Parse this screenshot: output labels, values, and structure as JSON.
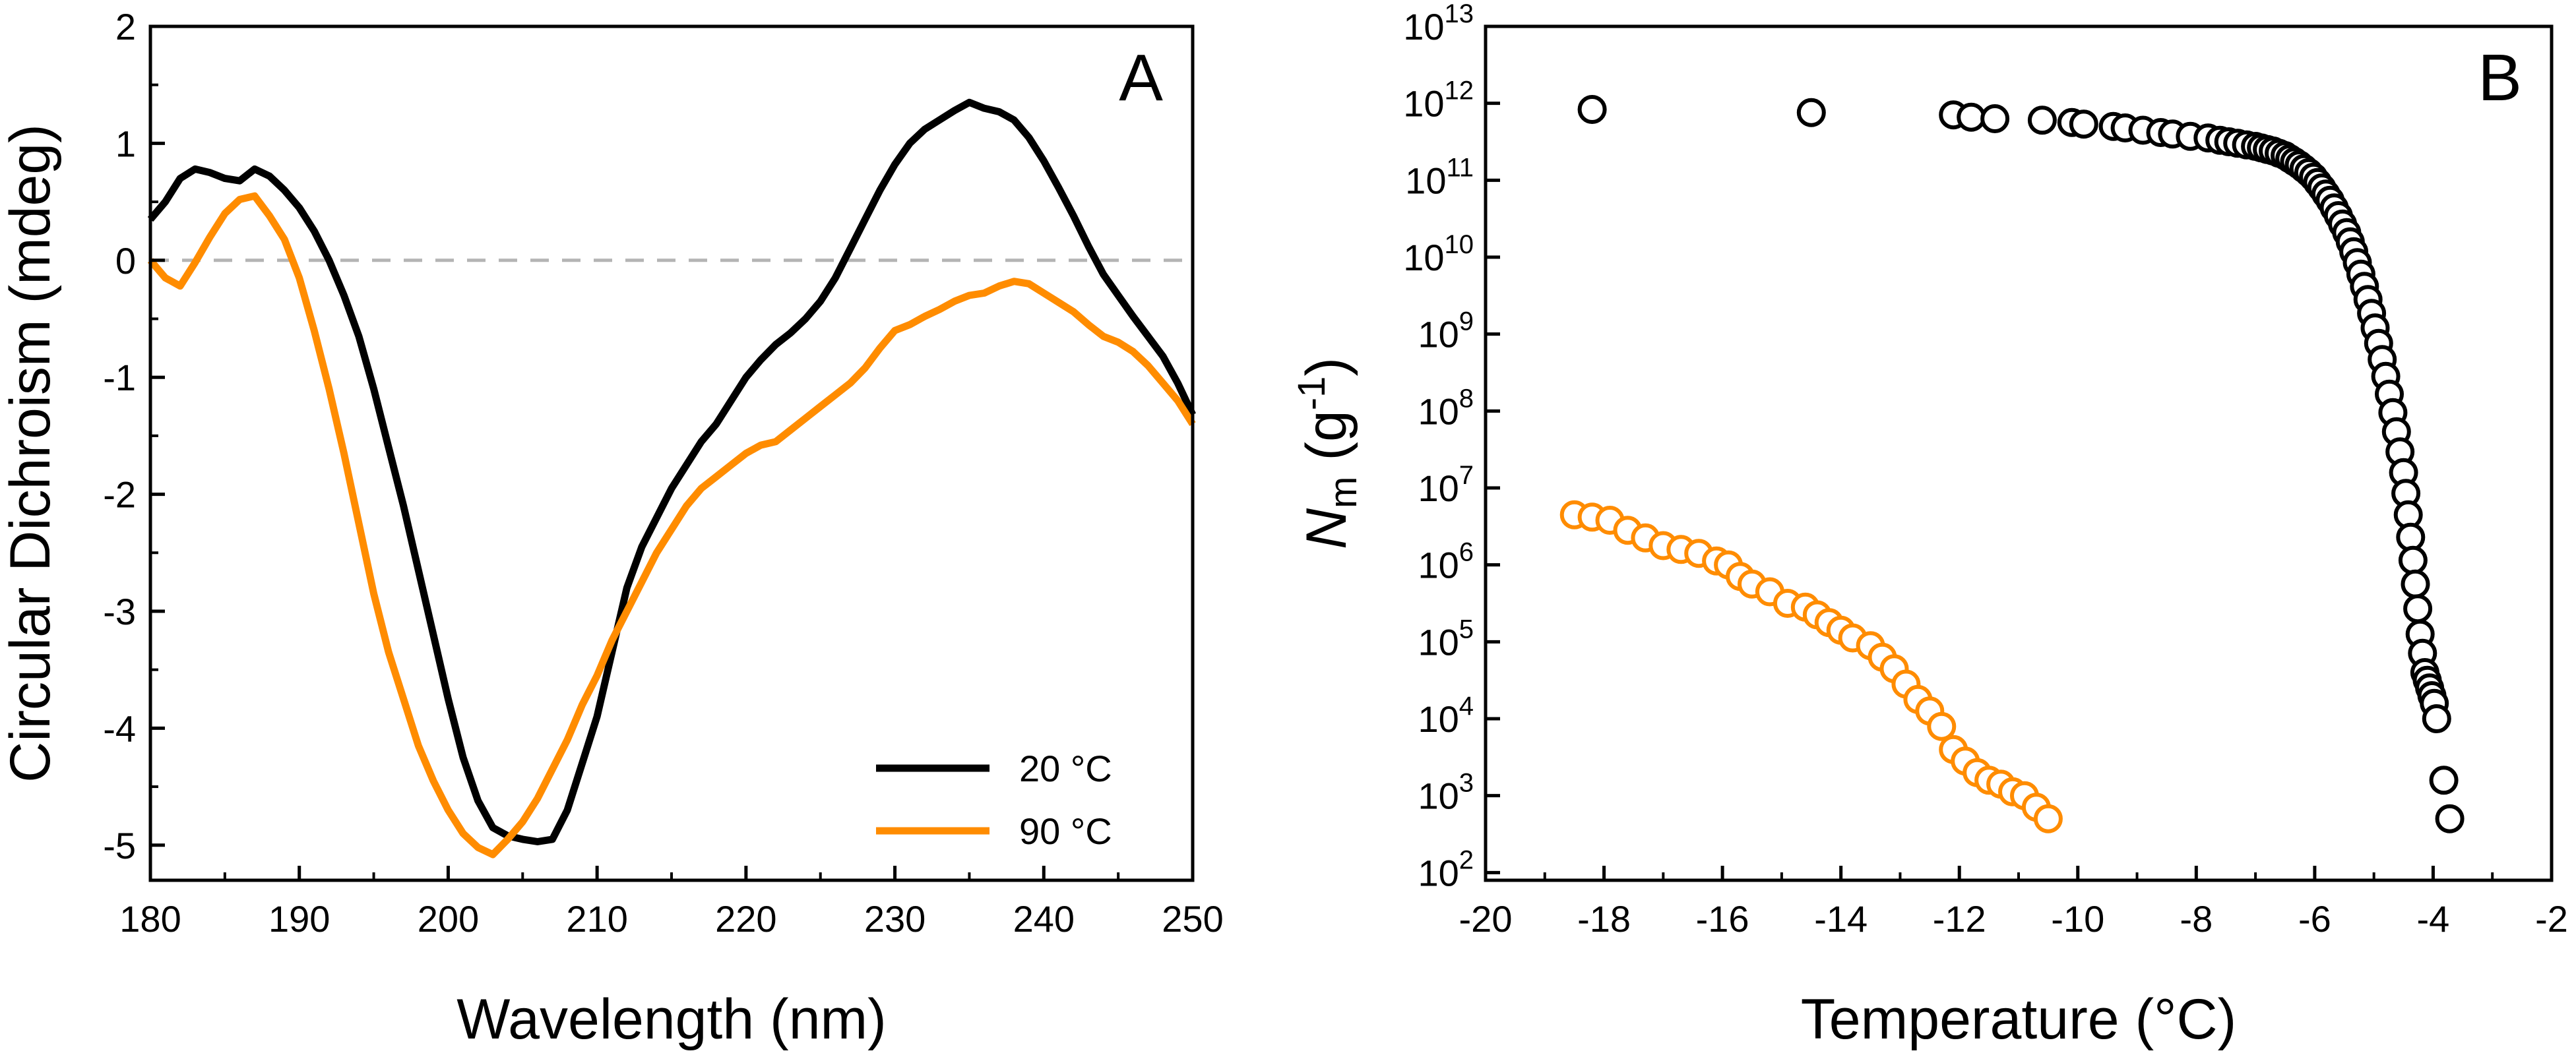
{
  "colors": {
    "black": "#000000",
    "orange": "#ff8c00",
    "zero_line": "#b4b4b4"
  },
  "chart_data": [
    {
      "type": "line",
      "panel_label": "A",
      "xlabel": "Wavelength (nm)",
      "ylabel": "Circular Dichroism (mdeg)",
      "xlim": [
        180,
        250
      ],
      "ylim": [
        -5.3,
        2
      ],
      "xticks": [
        "180",
        "190",
        "200",
        "210",
        "220",
        "230",
        "240",
        "250"
      ],
      "yticks": [
        "-5",
        "-4",
        "-3",
        "-2",
        "-1",
        "0",
        "1",
        "2"
      ],
      "zero_line": true,
      "legend": "bottom-right",
      "series": [
        {
          "name": "20 °C",
          "color": "#000000",
          "x": [
            180,
            181,
            182,
            183,
            184,
            185,
            186,
            187,
            188,
            189,
            190,
            191,
            192,
            193,
            194,
            195,
            196,
            197,
            198,
            199,
            200,
            201,
            202,
            203,
            204,
            205,
            206,
            207,
            208,
            209,
            210,
            211,
            212,
            213,
            214,
            215,
            216,
            217,
            218,
            219,
            220,
            221,
            222,
            223,
            224,
            225,
            226,
            227,
            228,
            229,
            230,
            231,
            232,
            233,
            234,
            235,
            236,
            237,
            238,
            239,
            240,
            241,
            242,
            243,
            244,
            245,
            246,
            247,
            248,
            249,
            250
          ],
          "y": [
            0.35,
            0.5,
            0.7,
            0.78,
            0.75,
            0.7,
            0.68,
            0.78,
            0.72,
            0.6,
            0.45,
            0.25,
            0.0,
            -0.3,
            -0.65,
            -1.1,
            -1.6,
            -2.1,
            -2.65,
            -3.2,
            -3.75,
            -4.25,
            -4.62,
            -4.85,
            -4.92,
            -4.95,
            -4.97,
            -4.95,
            -4.7,
            -4.3,
            -3.9,
            -3.35,
            -2.8,
            -2.45,
            -2.2,
            -1.95,
            -1.75,
            -1.55,
            -1.4,
            -1.2,
            -1.0,
            -0.85,
            -0.72,
            -0.62,
            -0.5,
            -0.35,
            -0.15,
            0.1,
            0.35,
            0.6,
            0.82,
            1.0,
            1.12,
            1.2,
            1.28,
            1.35,
            1.3,
            1.27,
            1.2,
            1.05,
            0.85,
            0.62,
            0.38,
            0.12,
            -0.12,
            -0.3,
            -0.48,
            -0.65,
            -0.82,
            -1.05,
            -1.32
          ]
        },
        {
          "name": "90 °C",
          "color": "#ff8c00",
          "x": [
            180,
            181,
            182,
            183,
            184,
            185,
            186,
            187,
            188,
            189,
            190,
            191,
            192,
            193,
            194,
            195,
            196,
            197,
            198,
            199,
            200,
            201,
            202,
            203,
            204,
            205,
            206,
            207,
            208,
            209,
            210,
            211,
            212,
            213,
            214,
            215,
            216,
            217,
            218,
            219,
            220,
            221,
            222,
            223,
            224,
            225,
            226,
            227,
            228,
            229,
            230,
            231,
            232,
            233,
            234,
            235,
            236,
            237,
            238,
            239,
            240,
            241,
            242,
            243,
            244,
            245,
            246,
            247,
            248,
            249,
            250
          ],
          "y": [
            0.0,
            -0.15,
            -0.22,
            -0.02,
            0.2,
            0.4,
            0.52,
            0.55,
            0.38,
            0.18,
            -0.15,
            -0.6,
            -1.1,
            -1.65,
            -2.25,
            -2.85,
            -3.35,
            -3.75,
            -4.15,
            -4.45,
            -4.7,
            -4.9,
            -5.02,
            -5.08,
            -4.95,
            -4.8,
            -4.6,
            -4.35,
            -4.1,
            -3.8,
            -3.55,
            -3.25,
            -3.0,
            -2.75,
            -2.5,
            -2.3,
            -2.1,
            -1.95,
            -1.85,
            -1.75,
            -1.65,
            -1.58,
            -1.55,
            -1.45,
            -1.35,
            -1.25,
            -1.15,
            -1.05,
            -0.92,
            -0.75,
            -0.6,
            -0.55,
            -0.48,
            -0.42,
            -0.35,
            -0.3,
            -0.28,
            -0.22,
            -0.18,
            -0.2,
            -0.28,
            -0.36,
            -0.44,
            -0.55,
            -0.65,
            -0.7,
            -0.78,
            -0.9,
            -1.05,
            -1.2,
            -1.4
          ]
        }
      ]
    },
    {
      "type": "scatter",
      "panel_label": "B",
      "xlabel": "Temperature (°C)",
      "ylabel_main": "N",
      "ylabel_sub": "m",
      "ylabel_unit": " (g",
      "ylabel_sup": "-1",
      "ylabel_close": ")",
      "xlim": [
        -20,
        -2
      ],
      "ylim_log10": [
        1.9,
        13
      ],
      "yscale": "log",
      "xticks": [
        "-20",
        "-18",
        "-16",
        "-14",
        "-12",
        "-10",
        "-8",
        "-6",
        "-4",
        "-2"
      ],
      "yticks": [
        {
          "base": "10",
          "exp": "2"
        },
        {
          "base": "10",
          "exp": "3"
        },
        {
          "base": "10",
          "exp": "4"
        },
        {
          "base": "10",
          "exp": "5"
        },
        {
          "base": "10",
          "exp": "6"
        },
        {
          "base": "10",
          "exp": "7"
        },
        {
          "base": "10",
          "exp": "8"
        },
        {
          "base": "10",
          "exp": "9"
        },
        {
          "base": "10",
          "exp": "10"
        },
        {
          "base": "10",
          "exp": "11"
        },
        {
          "base": "10",
          "exp": "12"
        },
        {
          "base": "10",
          "exp": "13"
        }
      ],
      "series": [
        {
          "color": "#000000",
          "marker": "open-circle",
          "x": [
            -18.2,
            -14.5,
            -12.1,
            -11.8,
            -11.4,
            -10.6,
            -10.1,
            -9.9,
            -9.4,
            -9.2,
            -8.9,
            -8.6,
            -8.4,
            -8.1,
            -7.8,
            -7.6,
            -7.45,
            -7.3,
            -7.15,
            -7.0,
            -6.9,
            -6.8,
            -6.7,
            -6.6,
            -6.5,
            -6.42,
            -6.34,
            -6.26,
            -6.18,
            -6.1,
            -6.02,
            -5.95,
            -5.88,
            -5.81,
            -5.74,
            -5.67,
            -5.6,
            -5.53,
            -5.46,
            -5.4,
            -5.34,
            -5.28,
            -5.22,
            -5.16,
            -5.1,
            -5.04,
            -4.98,
            -4.92,
            -4.86,
            -4.8,
            -4.74,
            -4.68,
            -4.62,
            -4.56,
            -4.5,
            -4.46,
            -4.42,
            -4.38,
            -4.34,
            -4.3,
            -4.26,
            -4.22,
            -4.18,
            -4.14,
            -4.1,
            -4.06,
            -4.02,
            -3.98,
            -3.94,
            -3.82,
            -3.72
          ],
          "y": [
            11.92,
            11.88,
            11.85,
            11.82,
            11.8,
            11.78,
            11.75,
            11.73,
            11.7,
            11.68,
            11.65,
            11.62,
            11.6,
            11.57,
            11.55,
            11.52,
            11.5,
            11.48,
            11.46,
            11.44,
            11.42,
            11.4,
            11.38,
            11.35,
            11.32,
            11.28,
            11.24,
            11.2,
            11.15,
            11.1,
            11.04,
            10.97,
            10.9,
            10.82,
            10.74,
            10.64,
            10.54,
            10.43,
            10.32,
            10.2,
            10.07,
            9.93,
            9.78,
            9.62,
            9.45,
            9.27,
            9.08,
            8.88,
            8.67,
            8.45,
            8.22,
            7.98,
            7.73,
            7.47,
            7.2,
            6.93,
            6.65,
            6.36,
            6.06,
            5.75,
            5.43,
            5.1,
            4.85,
            4.6,
            4.5,
            4.4,
            4.3,
            4.2,
            4.0,
            3.2,
            2.7
          ]
        },
        {
          "color": "#ff8c00",
          "marker": "open-circle",
          "x": [
            -18.5,
            -18.2,
            -17.9,
            -17.6,
            -17.3,
            -17.0,
            -16.7,
            -16.4,
            -16.1,
            -15.9,
            -15.7,
            -15.5,
            -15.2,
            -14.9,
            -14.6,
            -14.4,
            -14.2,
            -14.0,
            -13.8,
            -13.5,
            -13.3,
            -13.1,
            -12.9,
            -12.7,
            -12.5,
            -12.3,
            -12.1,
            -11.9,
            -11.7,
            -11.5,
            -11.3,
            -11.1,
            -10.9,
            -10.7,
            -10.5
          ],
          "y": [
            6.65,
            6.62,
            6.58,
            6.45,
            6.35,
            6.25,
            6.2,
            6.15,
            6.05,
            6.0,
            5.85,
            5.75,
            5.65,
            5.5,
            5.45,
            5.35,
            5.25,
            5.15,
            5.05,
            4.95,
            4.8,
            4.65,
            4.45,
            4.25,
            4.1,
            3.9,
            3.6,
            3.45,
            3.3,
            3.2,
            3.15,
            3.05,
            3.0,
            2.85,
            2.7
          ]
        }
      ]
    }
  ]
}
